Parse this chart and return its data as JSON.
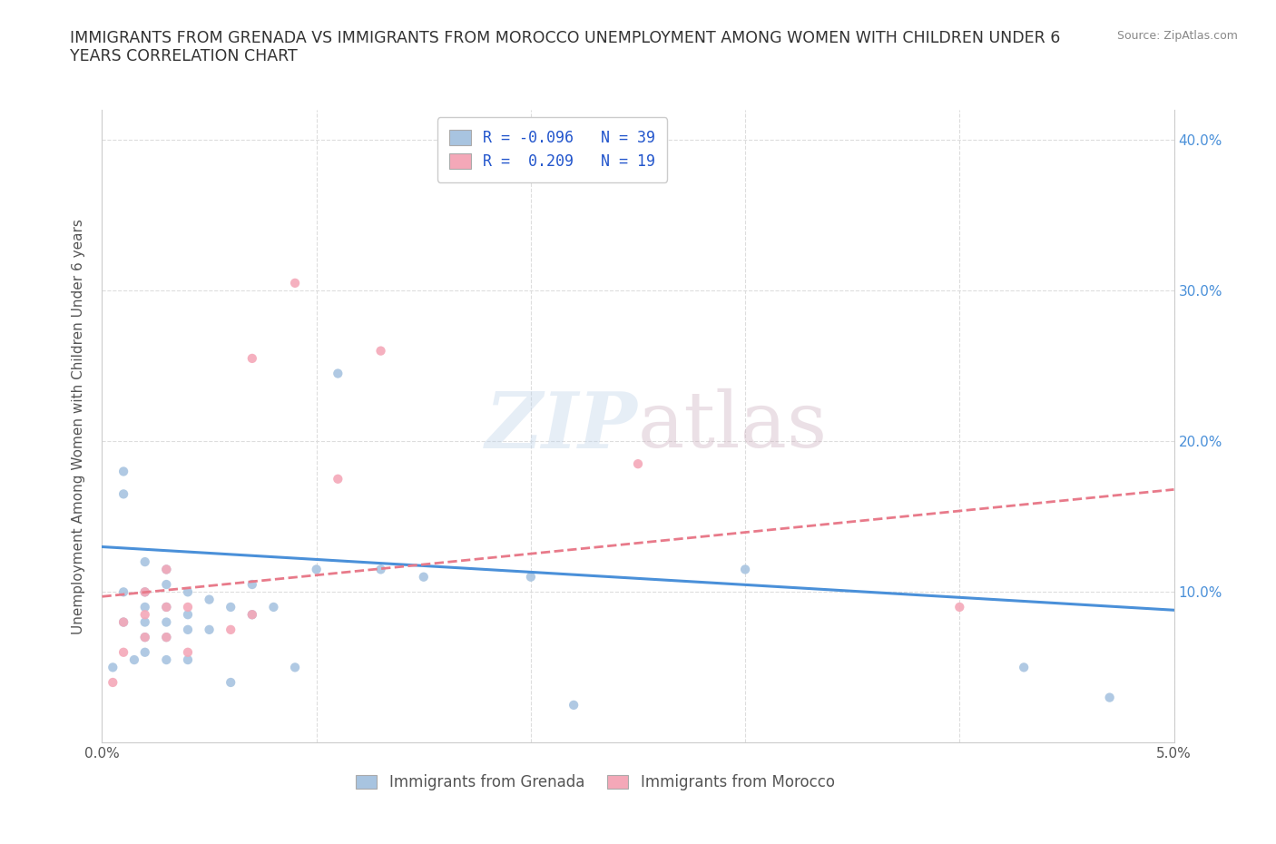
{
  "title": "IMMIGRANTS FROM GRENADA VS IMMIGRANTS FROM MOROCCO UNEMPLOYMENT AMONG WOMEN WITH CHILDREN UNDER 6\nYEARS CORRELATION CHART",
  "source_text": "Source: ZipAtlas.com",
  "ylabel": "Unemployment Among Women with Children Under 6 years",
  "xlim": [
    0.0,
    0.05
  ],
  "ylim": [
    0.0,
    0.42
  ],
  "xticks": [
    0.0,
    0.01,
    0.02,
    0.03,
    0.04,
    0.05
  ],
  "xticklabels": [
    "0.0%",
    "",
    "",
    "",
    "",
    "5.0%"
  ],
  "yticks": [
    0.0,
    0.1,
    0.2,
    0.3,
    0.4
  ],
  "right_yticklabels": [
    "",
    "10.0%",
    "20.0%",
    "30.0%",
    "40.0%"
  ],
  "grenada_color": "#a8c4e0",
  "morocco_color": "#f4a8b8",
  "grenada_line_color": "#4a90d9",
  "morocco_line_color": "#e87a8a",
  "grenada_R": -0.096,
  "grenada_N": 39,
  "morocco_R": 0.209,
  "morocco_N": 19,
  "background_color": "#ffffff",
  "watermark_zip": "ZIP",
  "watermark_atlas": "atlas",
  "grenada_x": [
    0.0005,
    0.001,
    0.001,
    0.001,
    0.001,
    0.0015,
    0.002,
    0.002,
    0.002,
    0.002,
    0.002,
    0.002,
    0.003,
    0.003,
    0.003,
    0.003,
    0.003,
    0.003,
    0.004,
    0.004,
    0.004,
    0.004,
    0.005,
    0.005,
    0.006,
    0.006,
    0.007,
    0.007,
    0.008,
    0.009,
    0.01,
    0.011,
    0.013,
    0.015,
    0.02,
    0.022,
    0.03,
    0.043,
    0.047
  ],
  "grenada_y": [
    0.05,
    0.08,
    0.1,
    0.165,
    0.18,
    0.055,
    0.06,
    0.07,
    0.08,
    0.09,
    0.1,
    0.12,
    0.055,
    0.07,
    0.08,
    0.09,
    0.105,
    0.115,
    0.055,
    0.075,
    0.085,
    0.1,
    0.075,
    0.095,
    0.04,
    0.09,
    0.085,
    0.105,
    0.09,
    0.05,
    0.115,
    0.245,
    0.115,
    0.11,
    0.11,
    0.025,
    0.115,
    0.05,
    0.03
  ],
  "morocco_x": [
    0.0005,
    0.001,
    0.001,
    0.002,
    0.002,
    0.002,
    0.003,
    0.003,
    0.003,
    0.004,
    0.004,
    0.006,
    0.007,
    0.007,
    0.009,
    0.011,
    0.013,
    0.025,
    0.04
  ],
  "morocco_y": [
    0.04,
    0.06,
    0.08,
    0.07,
    0.085,
    0.1,
    0.07,
    0.09,
    0.115,
    0.06,
    0.09,
    0.075,
    0.085,
    0.255,
    0.305,
    0.175,
    0.26,
    0.185,
    0.09
  ],
  "grid_color": "#dddddd",
  "title_color": "#333333",
  "legend_box_color_grenada": "#a8c4e0",
  "legend_box_color_morocco": "#f4a8b8",
  "grenada_line_x0": 0.0,
  "grenada_line_y0": 0.13,
  "grenada_line_x1": 0.05,
  "grenada_line_y1": 0.088,
  "morocco_line_x0": 0.0,
  "morocco_line_y0": 0.097,
  "morocco_line_x1": 0.05,
  "morocco_line_y1": 0.168
}
